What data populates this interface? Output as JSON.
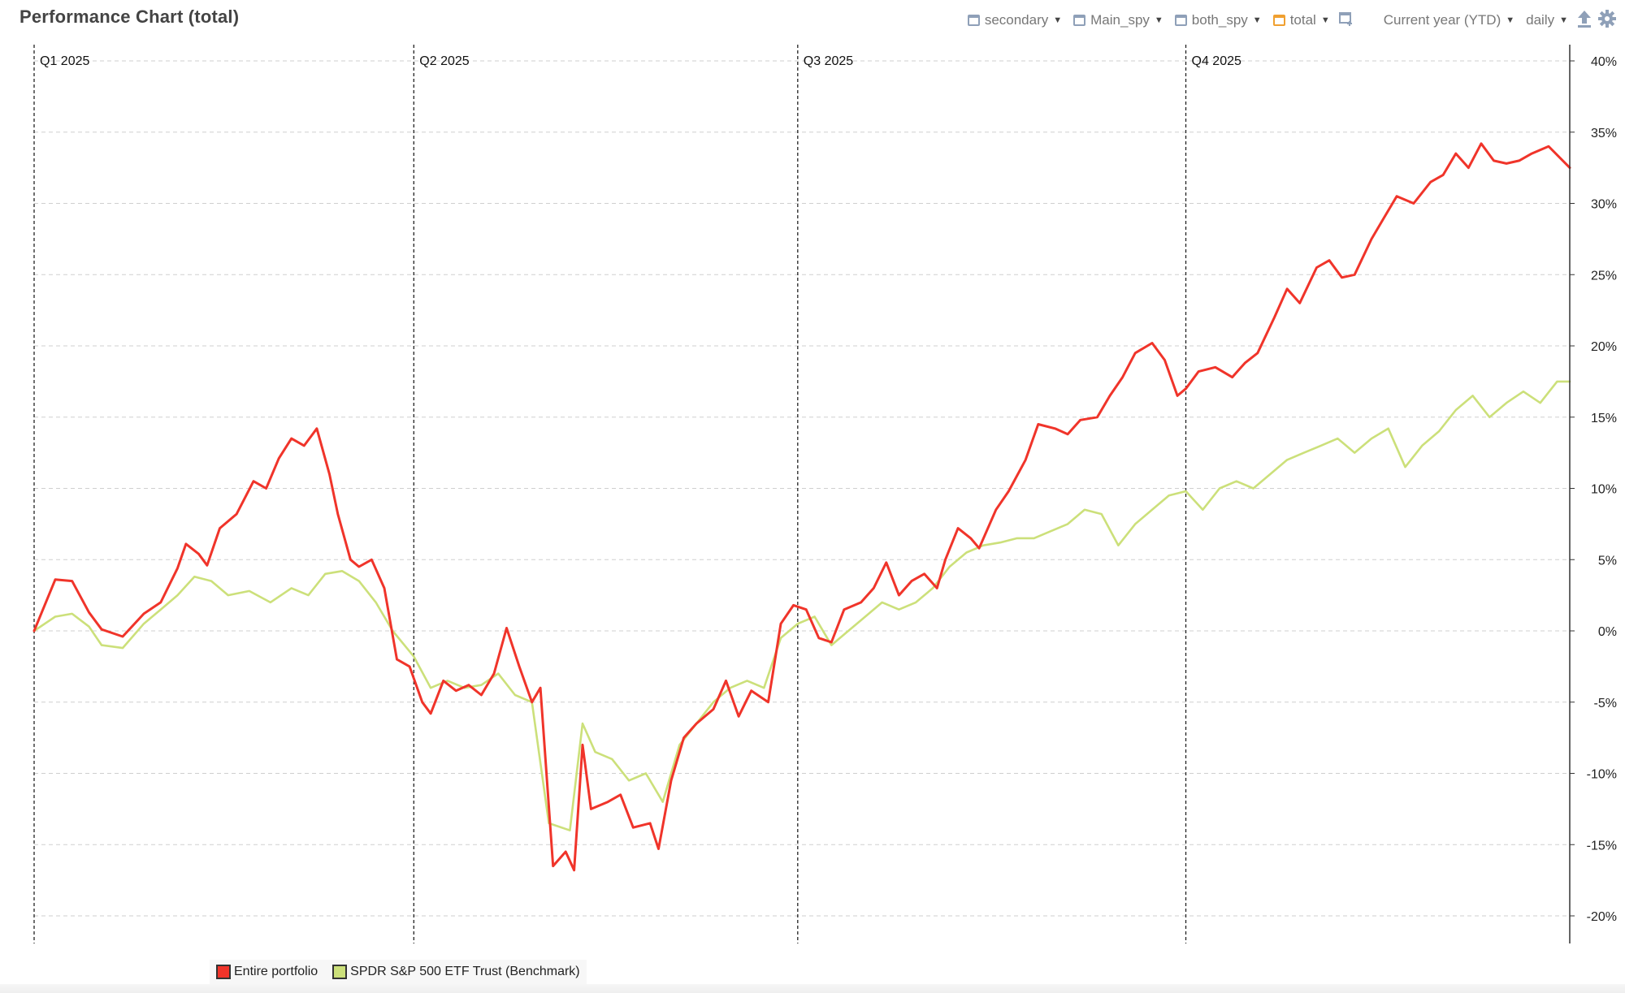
{
  "title": "Performance Chart (total)",
  "toolbar": {
    "items": [
      {
        "label": "secondary",
        "checked": false
      },
      {
        "label": "Main_spy",
        "checked": false
      },
      {
        "label": "both_spy",
        "checked": false
      },
      {
        "label": "total",
        "checked": true
      }
    ],
    "period_label": "Current year (YTD)",
    "frequency_label": "daily",
    "icons": [
      "add-chart-icon",
      "export-upload-icon",
      "settings-gear-icon"
    ]
  },
  "chart_data": {
    "type": "line",
    "x_type": "date",
    "x_range": [
      "2025-01-01",
      "2025-12-31"
    ],
    "quarter_markers": [
      {
        "label": "Q1 2025",
        "date": "2025-01-01"
      },
      {
        "label": "Q2 2025",
        "date": "2025-04-01"
      },
      {
        "label": "Q3 2025",
        "date": "2025-07-01"
      },
      {
        "label": "Q4 2025",
        "date": "2025-10-01"
      }
    ],
    "y_range": [
      -20,
      40
    ],
    "y_ticks": [
      40,
      35,
      30,
      25,
      20,
      15,
      10,
      5,
      0,
      -5,
      -10,
      -15,
      -20
    ],
    "y_tick_labels": [
      "40%",
      "35%",
      "30%",
      "25%",
      "20%",
      "15%",
      "10%",
      "5%",
      "0%",
      "-5%",
      "-10%",
      "-15%",
      "-20%"
    ],
    "y_axis_position": "right",
    "grid": true,
    "legend_position": "bottom-left",
    "series": [
      {
        "name": "Entire portfolio",
        "color": "#f0342a",
        "points": [
          [
            "2025-01-01",
            0.0
          ],
          [
            "2025-01-06",
            3.6
          ],
          [
            "2025-01-10",
            3.5
          ],
          [
            "2025-01-14",
            1.3
          ],
          [
            "2025-01-17",
            0.1
          ],
          [
            "2025-01-22",
            -0.4
          ],
          [
            "2025-01-27",
            1.2
          ],
          [
            "2025-01-31",
            2.0
          ],
          [
            "2025-02-04",
            4.4
          ],
          [
            "2025-02-06",
            6.1
          ],
          [
            "2025-02-09",
            5.4
          ],
          [
            "2025-02-11",
            4.6
          ],
          [
            "2025-02-14",
            7.2
          ],
          [
            "2025-02-18",
            8.2
          ],
          [
            "2025-02-22",
            10.5
          ],
          [
            "2025-02-25",
            10.0
          ],
          [
            "2025-02-28",
            12.1
          ],
          [
            "2025-03-03",
            13.5
          ],
          [
            "2025-03-06",
            13.0
          ],
          [
            "2025-03-09",
            14.2
          ],
          [
            "2025-03-12",
            11.0
          ],
          [
            "2025-03-14",
            8.2
          ],
          [
            "2025-03-17",
            5.0
          ],
          [
            "2025-03-19",
            4.5
          ],
          [
            "2025-03-22",
            5.0
          ],
          [
            "2025-03-25",
            3.0
          ],
          [
            "2025-03-28",
            -2.0
          ],
          [
            "2025-03-31",
            -2.5
          ],
          [
            "2025-04-03",
            -5.0
          ],
          [
            "2025-04-05",
            -5.8
          ],
          [
            "2025-04-08",
            -3.5
          ],
          [
            "2025-04-11",
            -4.2
          ],
          [
            "2025-04-14",
            -3.8
          ],
          [
            "2025-04-17",
            -4.5
          ],
          [
            "2025-04-20",
            -3.0
          ],
          [
            "2025-04-23",
            0.2
          ],
          [
            "2025-04-26",
            -2.5
          ],
          [
            "2025-04-29",
            -5.0
          ],
          [
            "2025-05-01",
            -4.0
          ],
          [
            "2025-05-04",
            -16.5
          ],
          [
            "2025-05-07",
            -15.5
          ],
          [
            "2025-05-09",
            -16.8
          ],
          [
            "2025-05-11",
            -8.0
          ],
          [
            "2025-05-13",
            -12.5
          ],
          [
            "2025-05-17",
            -12.0
          ],
          [
            "2025-05-20",
            -11.5
          ],
          [
            "2025-05-23",
            -13.8
          ],
          [
            "2025-05-27",
            -13.5
          ],
          [
            "2025-05-29",
            -15.3
          ],
          [
            "2025-06-01",
            -10.5
          ],
          [
            "2025-06-04",
            -7.5
          ],
          [
            "2025-06-07",
            -6.5
          ],
          [
            "2025-06-11",
            -5.5
          ],
          [
            "2025-06-14",
            -3.5
          ],
          [
            "2025-06-17",
            -6.0
          ],
          [
            "2025-06-20",
            -4.2
          ],
          [
            "2025-06-24",
            -5.0
          ],
          [
            "2025-06-27",
            0.5
          ],
          [
            "2025-06-30",
            1.8
          ],
          [
            "2025-07-03",
            1.5
          ],
          [
            "2025-07-06",
            -0.5
          ],
          [
            "2025-07-09",
            -0.8
          ],
          [
            "2025-07-12",
            1.5
          ],
          [
            "2025-07-16",
            2.0
          ],
          [
            "2025-07-19",
            3.0
          ],
          [
            "2025-07-22",
            4.8
          ],
          [
            "2025-07-25",
            2.5
          ],
          [
            "2025-07-28",
            3.5
          ],
          [
            "2025-07-31",
            4.0
          ],
          [
            "2025-08-03",
            3.0
          ],
          [
            "2025-08-05",
            5.0
          ],
          [
            "2025-08-08",
            7.2
          ],
          [
            "2025-08-11",
            6.5
          ],
          [
            "2025-08-13",
            5.8
          ],
          [
            "2025-08-17",
            8.5
          ],
          [
            "2025-08-20",
            9.8
          ],
          [
            "2025-08-24",
            12.0
          ],
          [
            "2025-08-27",
            14.5
          ],
          [
            "2025-08-31",
            14.2
          ],
          [
            "2025-09-03",
            13.8
          ],
          [
            "2025-09-06",
            14.8
          ],
          [
            "2025-09-10",
            15.0
          ],
          [
            "2025-09-13",
            16.5
          ],
          [
            "2025-09-16",
            17.8
          ],
          [
            "2025-09-19",
            19.5
          ],
          [
            "2025-09-23",
            20.2
          ],
          [
            "2025-09-26",
            19.0
          ],
          [
            "2025-09-29",
            16.5
          ],
          [
            "2025-10-01",
            17.0
          ],
          [
            "2025-10-04",
            18.2
          ],
          [
            "2025-10-08",
            18.5
          ],
          [
            "2025-10-12",
            17.8
          ],
          [
            "2025-10-15",
            18.8
          ],
          [
            "2025-10-18",
            19.5
          ],
          [
            "2025-10-22",
            22.0
          ],
          [
            "2025-10-25",
            24.0
          ],
          [
            "2025-10-28",
            23.0
          ],
          [
            "2025-11-01",
            25.5
          ],
          [
            "2025-11-04",
            26.0
          ],
          [
            "2025-11-07",
            24.8
          ],
          [
            "2025-11-10",
            25.0
          ],
          [
            "2025-11-14",
            27.5
          ],
          [
            "2025-11-17",
            29.0
          ],
          [
            "2025-11-20",
            30.5
          ],
          [
            "2025-11-24",
            30.0
          ],
          [
            "2025-11-28",
            31.5
          ],
          [
            "2025-12-01",
            32.0
          ],
          [
            "2025-12-04",
            33.5
          ],
          [
            "2025-12-07",
            32.5
          ],
          [
            "2025-12-10",
            34.2
          ],
          [
            "2025-12-13",
            33.0
          ],
          [
            "2025-12-16",
            32.8
          ],
          [
            "2025-12-19",
            33.0
          ],
          [
            "2025-12-22",
            33.5
          ],
          [
            "2025-12-26",
            34.0
          ],
          [
            "2025-12-31",
            32.5
          ]
        ]
      },
      {
        "name": "SPDR S&P 500 ETF Trust (Benchmark)",
        "color": "#cce07a",
        "points": [
          [
            "2025-01-01",
            0.0
          ],
          [
            "2025-01-06",
            1.0
          ],
          [
            "2025-01-10",
            1.2
          ],
          [
            "2025-01-14",
            0.3
          ],
          [
            "2025-01-17",
            -1.0
          ],
          [
            "2025-01-22",
            -1.2
          ],
          [
            "2025-01-27",
            0.5
          ],
          [
            "2025-01-31",
            1.5
          ],
          [
            "2025-02-04",
            2.5
          ],
          [
            "2025-02-08",
            3.8
          ],
          [
            "2025-02-12",
            3.5
          ],
          [
            "2025-02-16",
            2.5
          ],
          [
            "2025-02-21",
            2.8
          ],
          [
            "2025-02-26",
            2.0
          ],
          [
            "2025-03-03",
            3.0
          ],
          [
            "2025-03-07",
            2.5
          ],
          [
            "2025-03-11",
            4.0
          ],
          [
            "2025-03-15",
            4.2
          ],
          [
            "2025-03-19",
            3.5
          ],
          [
            "2025-03-23",
            2.0
          ],
          [
            "2025-03-27",
            0.0
          ],
          [
            "2025-04-01",
            -1.8
          ],
          [
            "2025-04-05",
            -4.0
          ],
          [
            "2025-04-09",
            -3.5
          ],
          [
            "2025-04-13",
            -4.0
          ],
          [
            "2025-04-17",
            -3.8
          ],
          [
            "2025-04-21",
            -3.0
          ],
          [
            "2025-04-25",
            -4.5
          ],
          [
            "2025-04-29",
            -5.0
          ],
          [
            "2025-05-03",
            -13.5
          ],
          [
            "2025-05-08",
            -14.0
          ],
          [
            "2025-05-11",
            -6.5
          ],
          [
            "2025-05-14",
            -8.5
          ],
          [
            "2025-05-18",
            -9.0
          ],
          [
            "2025-05-22",
            -10.5
          ],
          [
            "2025-05-26",
            -10.0
          ],
          [
            "2025-05-30",
            -12.0
          ],
          [
            "2025-06-03",
            -8.0
          ],
          [
            "2025-06-07",
            -6.5
          ],
          [
            "2025-06-11",
            -5.0
          ],
          [
            "2025-06-15",
            -4.0
          ],
          [
            "2025-06-19",
            -3.5
          ],
          [
            "2025-06-23",
            -4.0
          ],
          [
            "2025-06-27",
            -0.5
          ],
          [
            "2025-07-01",
            0.5
          ],
          [
            "2025-07-05",
            1.0
          ],
          [
            "2025-07-09",
            -1.0
          ],
          [
            "2025-07-13",
            0.0
          ],
          [
            "2025-07-17",
            1.0
          ],
          [
            "2025-07-21",
            2.0
          ],
          [
            "2025-07-25",
            1.5
          ],
          [
            "2025-07-29",
            2.0
          ],
          [
            "2025-08-02",
            3.0
          ],
          [
            "2025-08-06",
            4.5
          ],
          [
            "2025-08-10",
            5.5
          ],
          [
            "2025-08-14",
            6.0
          ],
          [
            "2025-08-18",
            6.2
          ],
          [
            "2025-08-22",
            6.5
          ],
          [
            "2025-08-26",
            6.5
          ],
          [
            "2025-08-30",
            7.0
          ],
          [
            "2025-09-03",
            7.5
          ],
          [
            "2025-09-07",
            8.5
          ],
          [
            "2025-09-11",
            8.2
          ],
          [
            "2025-09-15",
            6.0
          ],
          [
            "2025-09-19",
            7.5
          ],
          [
            "2025-09-23",
            8.5
          ],
          [
            "2025-09-27",
            9.5
          ],
          [
            "2025-10-01",
            9.8
          ],
          [
            "2025-10-05",
            8.5
          ],
          [
            "2025-10-09",
            10.0
          ],
          [
            "2025-10-13",
            10.5
          ],
          [
            "2025-10-17",
            10.0
          ],
          [
            "2025-10-21",
            11.0
          ],
          [
            "2025-10-25",
            12.0
          ],
          [
            "2025-10-29",
            12.5
          ],
          [
            "2025-11-02",
            13.0
          ],
          [
            "2025-11-06",
            13.5
          ],
          [
            "2025-11-10",
            12.5
          ],
          [
            "2025-11-14",
            13.5
          ],
          [
            "2025-11-18",
            14.2
          ],
          [
            "2025-11-22",
            11.5
          ],
          [
            "2025-11-26",
            13.0
          ],
          [
            "2025-11-30",
            14.0
          ],
          [
            "2025-12-04",
            15.5
          ],
          [
            "2025-12-08",
            16.5
          ],
          [
            "2025-12-12",
            15.0
          ],
          [
            "2025-12-16",
            16.0
          ],
          [
            "2025-12-20",
            16.8
          ],
          [
            "2025-12-24",
            16.0
          ],
          [
            "2025-12-28",
            17.5
          ],
          [
            "2025-12-31",
            17.5
          ]
        ]
      }
    ]
  }
}
